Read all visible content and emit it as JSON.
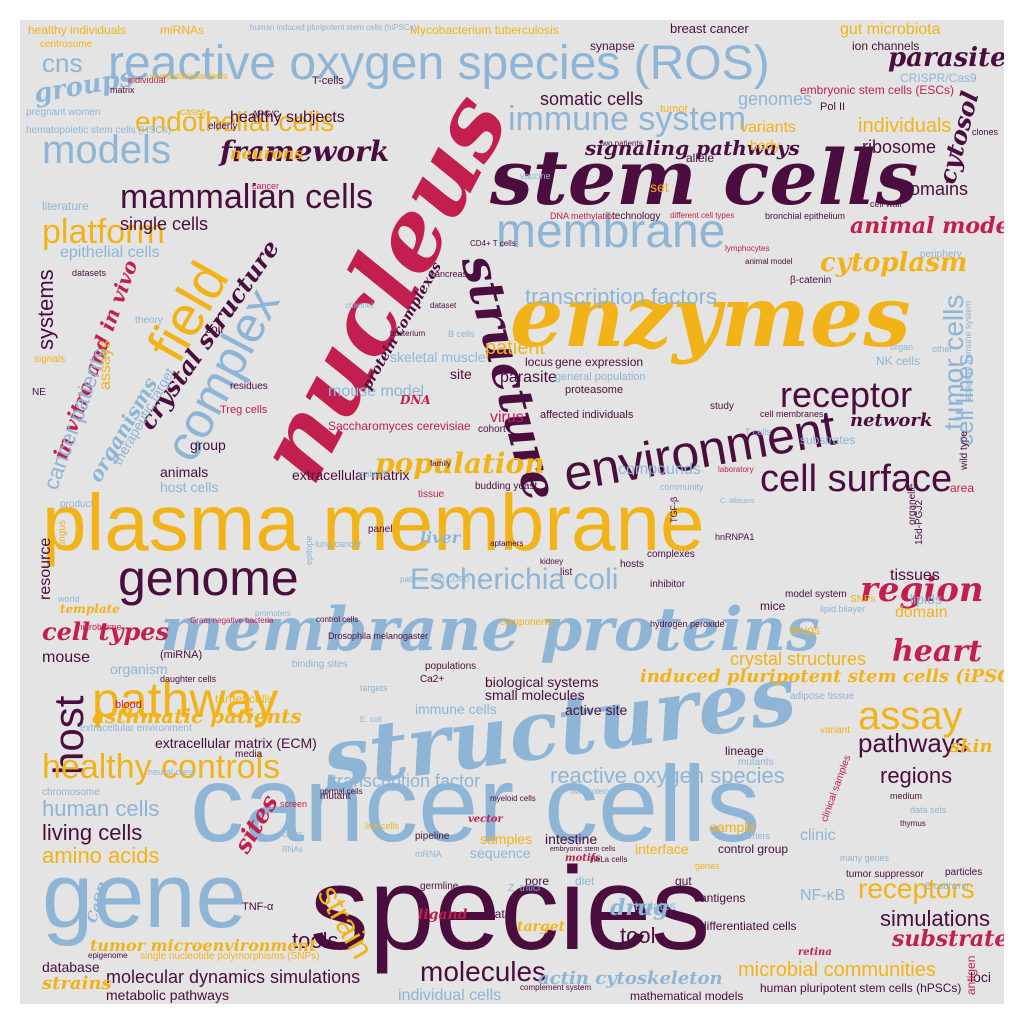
{
  "words": [
    {
      "text": "plasma membrane",
      "color": "#f2b318"
    },
    {
      "text": "species",
      "color": "#4a0d3e"
    },
    {
      "text": "cancer cells",
      "color": "#8eb5d5"
    },
    {
      "text": "stem cells",
      "color": "#4a0d3e"
    },
    {
      "text": "nucleus",
      "color": "#c21f4f"
    },
    {
      "text": "enzymes",
      "color": "#f2b318"
    },
    {
      "text": "structures",
      "color": "#8eb5d5"
    },
    {
      "text": "membrane proteins",
      "color": "#8eb5d5"
    },
    {
      "text": "gene",
      "color": "#8eb5d5"
    },
    {
      "text": "reactive oxygen species (ROS)",
      "color": "#8eb5d5"
    },
    {
      "text": "structure",
      "color": "#4a0d3e"
    },
    {
      "text": "membrane",
      "color": "#8eb5d5"
    },
    {
      "text": "complex",
      "color": "#8eb5d5"
    },
    {
      "text": "field",
      "color": "#f2b318"
    },
    {
      "text": "environment",
      "color": "#4a0d3e"
    },
    {
      "text": "genome",
      "color": "#4a0d3e"
    },
    {
      "text": "pathway",
      "color": "#f2b318"
    },
    {
      "text": "cell surface",
      "color": "#4a0d3e"
    },
    {
      "text": "models",
      "color": "#8eb5d5"
    },
    {
      "text": "immune system",
      "color": "#8eb5d5"
    },
    {
      "text": "mammalian cells",
      "color": "#4a0d3e"
    },
    {
      "text": "Escherichia coli",
      "color": "#8eb5d5"
    },
    {
      "text": "host",
      "color": "#4a0d3e"
    },
    {
      "text": "region",
      "color": "#c21f4f"
    },
    {
      "text": "healthy controls",
      "color": "#f2b318"
    },
    {
      "text": "assay",
      "color": "#f2b318"
    },
    {
      "text": "receptor",
      "color": "#4a0d3e"
    },
    {
      "text": "strain",
      "color": "#f2b318"
    },
    {
      "text": "platform",
      "color": "#f2b318"
    },
    {
      "text": "endothelial cells",
      "color": "#f2b318"
    },
    {
      "text": "framework",
      "color": "#4a0d3e"
    },
    {
      "text": "crystal structure",
      "color": "#4a0d3e"
    },
    {
      "text": "population",
      "color": "#f2b318"
    },
    {
      "text": "transcription factors",
      "color": "#8eb5d5"
    },
    {
      "text": "molecules",
      "color": "#4a0d3e"
    },
    {
      "text": "receptors",
      "color": "#f2b318"
    },
    {
      "text": "pathways",
      "color": "#4a0d3e"
    },
    {
      "text": "heart",
      "color": "#c21f4f"
    },
    {
      "text": "cell types",
      "color": "#c21f4f"
    },
    {
      "text": "cytoplasm",
      "color": "#f2b318"
    },
    {
      "text": "tumor cells",
      "color": "#8eb5d5"
    },
    {
      "text": "cell lines",
      "color": "#8eb5d5"
    },
    {
      "text": "cytosol",
      "color": "#4a0d3e"
    },
    {
      "text": "animal models",
      "color": "#c21f4f"
    },
    {
      "text": "parasites",
      "color": "#4a0d3e"
    },
    {
      "text": "groups",
      "color": "#8eb5d5"
    },
    {
      "text": "cns",
      "color": "#8eb5d5"
    },
    {
      "text": "in vitro and in vivo",
      "color": "#c21f4f"
    },
    {
      "text": "systems",
      "color": "#4a0d3e"
    },
    {
      "text": "cancer patients",
      "color": "#8eb5d5"
    },
    {
      "text": "organisms",
      "color": "#8eb5d5"
    },
    {
      "text": "human cells",
      "color": "#8eb5d5"
    },
    {
      "text": "living cells",
      "color": "#4a0d3e"
    },
    {
      "text": "amino acids",
      "color": "#f2b318"
    },
    {
      "text": "sites",
      "color": "#c21f4f"
    },
    {
      "text": "simulations",
      "color": "#4a0d3e"
    },
    {
      "text": "regions",
      "color": "#4a0d3e"
    },
    {
      "text": "substrate",
      "color": "#c21f4f"
    },
    {
      "text": "tools",
      "color": "#4a0d3e"
    },
    {
      "text": "drug",
      "color": "#8eb5d5"
    },
    {
      "text": "tool",
      "color": "#4a0d3e"
    },
    {
      "text": "asthmatic patients",
      "color": "#f2b318"
    },
    {
      "text": "transcription factor",
      "color": "#8eb5d5"
    },
    {
      "text": "reactive oxygen species",
      "color": "#8eb5d5"
    },
    {
      "text": "induced pluripotent stem cells (iPSCs)",
      "color": "#f2b318"
    },
    {
      "text": "crystal structures",
      "color": "#f2b318"
    },
    {
      "text": "microbial communities",
      "color": "#f2b318"
    },
    {
      "text": "actin cytoskeleton",
      "color": "#8eb5d5"
    },
    {
      "text": "molecular dynamics simulations",
      "color": "#4a0d3e"
    },
    {
      "text": "tumor microenvironment",
      "color": "#f2b318"
    },
    {
      "text": "strains",
      "color": "#f2b318"
    },
    {
      "text": "metabolic pathways",
      "color": "#4a0d3e"
    },
    {
      "text": "database",
      "color": "#4a0d3e"
    },
    {
      "text": "individual cells",
      "color": "#8eb5d5"
    },
    {
      "text": "single cells",
      "color": "#4a0d3e"
    },
    {
      "text": "epithelial cells",
      "color": "#8eb5d5"
    },
    {
      "text": "healthy subjects",
      "color": "#4a0d3e"
    },
    {
      "text": "neurons",
      "color": "#f2b318"
    },
    {
      "text": "somatic cells",
      "color": "#4a0d3e"
    },
    {
      "text": "genomes",
      "color": "#8eb5d5"
    },
    {
      "text": "signaling pathways",
      "color": "#4a0d3e"
    },
    {
      "text": "individuals",
      "color": "#f2b318"
    },
    {
      "text": "ribosome",
      "color": "#4a0d3e"
    },
    {
      "text": "variants",
      "color": "#f2b318"
    },
    {
      "text": "domains",
      "color": "#4a0d3e"
    },
    {
      "text": "network",
      "color": "#4a0d3e"
    },
    {
      "text": "patient",
      "color": "#f2b318"
    },
    {
      "text": "parasite",
      "color": "#4a0d3e"
    },
    {
      "text": "virus",
      "color": "#c21f4f"
    },
    {
      "text": "mouse model",
      "color": "#8eb5d5"
    },
    {
      "text": "protein complexes",
      "color": "#4a0d3e"
    },
    {
      "text": "skeletal muscle",
      "color": "#8eb5d5"
    },
    {
      "text": "Saccharomyces cerevisiae",
      "color": "#c21f4f"
    },
    {
      "text": "extracellular matrix",
      "color": "#4a0d3e"
    },
    {
      "text": "extracellular matrix (ECM)",
      "color": "#4a0d3e"
    },
    {
      "text": "compounds",
      "color": "#8eb5d5"
    },
    {
      "text": "liver",
      "color": "#8eb5d5"
    },
    {
      "text": "lipids",
      "color": "#8eb5d5"
    },
    {
      "text": "domain",
      "color": "#f2b318"
    },
    {
      "text": "tissues",
      "color": "#4a0d3e"
    },
    {
      "text": "skin",
      "color": "#f2b318"
    },
    {
      "text": "mouse",
      "color": "#4a0d3e"
    },
    {
      "text": "organism",
      "color": "#8eb5d5"
    },
    {
      "text": "biological systems",
      "color": "#4a0d3e"
    },
    {
      "text": "small molecules",
      "color": "#4a0d3e"
    },
    {
      "text": "immune cells",
      "color": "#8eb5d5"
    },
    {
      "text": "active site",
      "color": "#4a0d3e"
    },
    {
      "text": "target cells",
      "color": "#f2b318"
    },
    {
      "text": "resource",
      "color": "#4a0d3e"
    },
    {
      "text": "animals",
      "color": "#4a0d3e"
    },
    {
      "text": "host cells",
      "color": "#8eb5d5"
    },
    {
      "text": "group",
      "color": "#4a0d3e"
    },
    {
      "text": "therapeutic target",
      "color": "#8eb5d5"
    },
    {
      "text": "assays",
      "color": "#f2b318"
    },
    {
      "text": "site",
      "color": "#4a0d3e"
    },
    {
      "text": "DNA",
      "color": "#c21f4f"
    },
    {
      "text": "samples",
      "color": "#f2b318"
    },
    {
      "text": "intestine",
      "color": "#4a0d3e"
    },
    {
      "text": "sequence",
      "color": "#8eb5d5"
    },
    {
      "text": "interface",
      "color": "#f2b318"
    },
    {
      "text": "clinic",
      "color": "#8eb5d5"
    },
    {
      "text": "sample",
      "color": "#f2b318"
    },
    {
      "text": "control group",
      "color": "#4a0d3e"
    },
    {
      "text": "NF-κB",
      "color": "#8eb5d5"
    },
    {
      "text": "antigens",
      "color": "#4a0d3e"
    },
    {
      "text": "differentiated cells",
      "color": "#4a0d3e"
    },
    {
      "text": "mathematical models",
      "color": "#4a0d3e"
    },
    {
      "text": "human pluripotent stem cells (hPSCs)",
      "color": "#4a0d3e"
    },
    {
      "text": "loci",
      "color": "#4a0d3e"
    },
    {
      "text": "target",
      "color": "#f2b318"
    },
    {
      "text": "ligand",
      "color": "#c21f4f"
    },
    {
      "text": "Mycobacterium tuberculosis",
      "color": "#f2b318"
    },
    {
      "text": "breast cancer",
      "color": "#4a0d3e"
    },
    {
      "text": "gut microbiota",
      "color": "#f2b318"
    },
    {
      "text": "ion channels",
      "color": "#4a0d3e"
    },
    {
      "text": "CRISPR/Cas9",
      "color": "#8eb5d5"
    },
    {
      "text": "embryonic stem cells (ESCs)",
      "color": "#c21f4f"
    },
    {
      "text": "healthy individuals",
      "color": "#f2b318"
    },
    {
      "text": "miRNAs",
      "color": "#f2b318"
    },
    {
      "text": "synapse",
      "color": "#4a0d3e"
    },
    {
      "text": "centrosome",
      "color": "#f2b318"
    },
    {
      "text": "human induced pluripotent stem cells (hiPSCs)",
      "color": "#8eb5d5"
    },
    {
      "text": "T-cells",
      "color": "#4a0d3e"
    },
    {
      "text": "tumor",
      "color": "#f2b318"
    },
    {
      "text": "Pol II",
      "color": "#4a0d3e"
    },
    {
      "text": "pregnant women",
      "color": "#8eb5d5"
    },
    {
      "text": "cases",
      "color": "#f2b318"
    },
    {
      "text": "elderly",
      "color": "#4a0d3e"
    },
    {
      "text": "hematopoietic stem cells (HSCs)",
      "color": "#8eb5d5"
    },
    {
      "text": "body",
      "color": "#f2b318"
    },
    {
      "text": "allele",
      "color": "#4a0d3e"
    },
    {
      "text": "set",
      "color": "#f2b318"
    },
    {
      "text": "literature",
      "color": "#8eb5d5"
    },
    {
      "text": "technology",
      "color": "#4a0d3e"
    },
    {
      "text": "cell wall",
      "color": "#4a0d3e"
    },
    {
      "text": "bronchial epithelium",
      "color": "#4a0d3e"
    },
    {
      "text": "periphery",
      "color": "#8eb5d5"
    },
    {
      "text": "gene expression",
      "color": "#4a0d3e"
    },
    {
      "text": "locus",
      "color": "#4a0d3e"
    },
    {
      "text": "general population",
      "color": "#8eb5d5"
    },
    {
      "text": "proteasome",
      "color": "#4a0d3e"
    },
    {
      "text": "affected individuals",
      "color": "#4a0d3e"
    },
    {
      "text": "study",
      "color": "#4a0d3e"
    },
    {
      "text": "cell membranes",
      "color": "#4a0d3e"
    },
    {
      "text": "NK cells",
      "color": "#8eb5d5"
    },
    {
      "text": "adaptive immune system",
      "color": "#8eb5d5"
    },
    {
      "text": "wild type",
      "color": "#4a0d3e"
    },
    {
      "text": "substrates",
      "color": "#8eb5d5"
    },
    {
      "text": "area",
      "color": "#c21f4f"
    },
    {
      "text": "organelle",
      "color": "#4a0d3e"
    },
    {
      "text": "cohort",
      "color": "#4a0d3e"
    },
    {
      "text": "β-catenin",
      "color": "#4a0d3e"
    },
    {
      "text": "lipid bilayer",
      "color": "#8eb5d5"
    },
    {
      "text": "model system",
      "color": "#4a0d3e"
    },
    {
      "text": "mice",
      "color": "#4a0d3e"
    },
    {
      "text": "drugs",
      "color": "#f2b318"
    },
    {
      "text": "SNPs",
      "color": "#f2b318"
    },
    {
      "text": "adipose tissue",
      "color": "#8eb5d5"
    },
    {
      "text": "lineage",
      "color": "#4a0d3e"
    },
    {
      "text": "mutants",
      "color": "#8eb5d5"
    },
    {
      "text": "clinical samples",
      "color": "#c21f4f"
    },
    {
      "text": "isolates",
      "color": "#8eb5d5"
    },
    {
      "text": "gut",
      "color": "#4a0d3e"
    },
    {
      "text": "pore",
      "color": "#4a0d3e"
    },
    {
      "text": "diet",
      "color": "#8eb5d5"
    },
    {
      "text": "data",
      "color": "#4a0d3e"
    },
    {
      "text": "agents",
      "color": "#4a0d3e"
    },
    {
      "text": "germline",
      "color": "#4a0d3e"
    },
    {
      "text": "retina",
      "color": "#c21f4f"
    },
    {
      "text": "Z. tritici",
      "color": "#8eb5d5"
    },
    {
      "text": "motifs",
      "color": "#c21f4f"
    },
    {
      "text": "vector",
      "color": "#c21f4f"
    },
    {
      "text": "pipeline",
      "color": "#4a0d3e"
    },
    {
      "text": "TNF-α",
      "color": "#4a0d3e"
    },
    {
      "text": "CaSR",
      "color": "#8eb5d5"
    },
    {
      "text": "chromosome",
      "color": "#8eb5d5"
    },
    {
      "text": "neural crest",
      "color": "#8eb5d5"
    },
    {
      "text": "media",
      "color": "#4a0d3e"
    },
    {
      "text": "extracellular environment",
      "color": "#8eb5d5"
    },
    {
      "text": "mutant",
      "color": "#4a0d3e"
    },
    {
      "text": "blood",
      "color": "#c21f4f"
    },
    {
      "text": "(miRNA)",
      "color": "#4a0d3e"
    },
    {
      "text": "template",
      "color": "#f2b318"
    },
    {
      "text": "panel",
      "color": "#4a0d3e"
    },
    {
      "text": "lung cancer",
      "color": "#8eb5d5"
    },
    {
      "text": "kidney",
      "color": "#4a0d3e"
    },
    {
      "text": "list",
      "color": "#4a0d3e"
    },
    {
      "text": "hosts",
      "color": "#4a0d3e"
    },
    {
      "text": "inhibitor",
      "color": "#4a0d3e"
    },
    {
      "text": "Drosophila melanogaster",
      "color": "#4a0d3e"
    },
    {
      "text": "components",
      "color": "#f2b318"
    },
    {
      "text": "hydrogen peroxide",
      "color": "#4a0d3e"
    },
    {
      "text": "populations",
      "color": "#4a0d3e"
    },
    {
      "text": "Ca2+",
      "color": "#4a0d3e"
    },
    {
      "text": "binding sites",
      "color": "#8eb5d5"
    },
    {
      "text": "daughter cells",
      "color": "#4a0d3e"
    },
    {
      "text": "tissue",
      "color": "#c21f4f"
    },
    {
      "text": "family",
      "color": "#4a0d3e"
    },
    {
      "text": "subset",
      "color": "#8eb5d5"
    },
    {
      "text": "budding yeast",
      "color": "#4a0d3e"
    },
    {
      "text": "fungus",
      "color": "#f2b318"
    },
    {
      "text": "product",
      "color": "#8eb5d5"
    },
    {
      "text": "residues",
      "color": "#4a0d3e"
    },
    {
      "text": "Treg cells",
      "color": "#c21f4f"
    },
    {
      "text": "soil",
      "color": "#4a0d3e"
    },
    {
      "text": "theory",
      "color": "#8eb5d5"
    },
    {
      "text": "signals",
      "color": "#f2b318"
    },
    {
      "text": "NE",
      "color": "#4a0d3e"
    },
    {
      "text": "datasets",
      "color": "#4a0d3e"
    },
    {
      "text": "matrix",
      "color": "#4a0d3e"
    },
    {
      "text": "individual",
      "color": "#c21f4f"
    },
    {
      "text": "computational tools",
      "color": "#f2b318"
    },
    {
      "text": "APC/C",
      "color": "#4a0d3e"
    },
    {
      "text": "vaccine",
      "color": "#8eb5d5"
    },
    {
      "text": "cancer",
      "color": "#c21f4f"
    },
    {
      "text": "DNA methylation",
      "color": "#c21f4f"
    },
    {
      "text": "different cell types",
      "color": "#c21f4f"
    },
    {
      "text": "clones",
      "color": "#4a0d3e"
    },
    {
      "text": "world",
      "color": "#8eb5d5"
    },
    {
      "text": "control cells",
      "color": "#4a0d3e"
    },
    {
      "text": "single nucleotide polymorphisms (SNPs)",
      "color": "#f2b318"
    },
    {
      "text": "epigenome",
      "color": "#4a0d3e"
    },
    {
      "text": "particles",
      "color": "#4a0d3e"
    },
    {
      "text": "tumor suppressor",
      "color": "#4a0d3e"
    },
    {
      "text": "E-cadherin",
      "color": "#8eb5d5"
    },
    {
      "text": "carriers",
      "color": "#8eb5d5"
    },
    {
      "text": "many genes",
      "color": "#8eb5d5"
    },
    {
      "text": "antigen",
      "color": "#c21f4f"
    },
    {
      "text": "medium",
      "color": "#4a0d3e"
    },
    {
      "text": "data sets",
      "color": "#8eb5d5"
    },
    {
      "text": "thymus",
      "color": "#4a0d3e"
    },
    {
      "text": "variant",
      "color": "#f2b318"
    },
    {
      "text": "mRNA",
      "color": "#8eb5d5"
    },
    {
      "text": "live cells",
      "color": "#f2b318"
    },
    {
      "text": "Gram-negative bacteria",
      "color": "#c21f4f"
    },
    {
      "text": "microbiome",
      "color": "#c21f4f"
    },
    {
      "text": "promoters",
      "color": "#8eb5d5"
    },
    {
      "text": "E. coli",
      "color": "#8eb5d5"
    },
    {
      "text": "targets",
      "color": "#8eb5d5"
    },
    {
      "text": "HeLa cells",
      "color": "#4a0d3e"
    },
    {
      "text": "embryonic stem cells",
      "color": "#4a0d3e"
    },
    {
      "text": "genes",
      "color": "#f2b318"
    },
    {
      "text": "class",
      "color": "#8eb5d5"
    },
    {
      "text": "screen",
      "color": "#c21f4f"
    },
    {
      "text": "RNAs",
      "color": "#8eb5d5"
    },
    {
      "text": "complement system",
      "color": "#4a0d3e"
    },
    {
      "text": "normal cells",
      "color": "#4a0d3e"
    },
    {
      "text": "two proteins",
      "color": "#8eb5d5"
    },
    {
      "text": "myeloid cells",
      "color": "#4a0d3e"
    },
    {
      "text": "TGF-β",
      "color": "#4a0d3e"
    },
    {
      "text": "15d-PGJ2",
      "color": "#4a0d3e"
    },
    {
      "text": "epitope",
      "color": "#8eb5d5"
    },
    {
      "text": "aptamers",
      "color": "#4a0d3e"
    },
    {
      "text": "patients with COPD",
      "color": "#8eb5d5"
    },
    {
      "text": "laboratory",
      "color": "#c21f4f"
    },
    {
      "text": "community",
      "color": "#8eb5d5"
    },
    {
      "text": "complexes",
      "color": "#4a0d3e"
    },
    {
      "text": "hnRNPA1",
      "color": "#4a0d3e"
    },
    {
      "text": "two patients",
      "color": "#4a0d3e"
    },
    {
      "text": "C. albicans",
      "color": "#8eb5d5"
    },
    {
      "text": "T cells",
      "color": "#8eb5d5"
    },
    {
      "text": "bacterium",
      "color": "#4a0d3e"
    },
    {
      "text": "channel",
      "color": "#8eb5d5"
    },
    {
      "text": "dataset",
      "color": "#4a0d3e"
    },
    {
      "text": "animal model",
      "color": "#4a0d3e"
    },
    {
      "text": "pancreas",
      "color": "#4a0d3e"
    },
    {
      "text": "CD4+ T cells",
      "color": "#4a0d3e"
    },
    {
      "text": "B cells",
      "color": "#8eb5d5"
    },
    {
      "text": "lymphocytes",
      "color": "#c21f4f"
    },
    {
      "text": "other",
      "color": "#8eb5d5"
    },
    {
      "text": "organ",
      "color": "#8eb5d5"
    }
  ]
}
